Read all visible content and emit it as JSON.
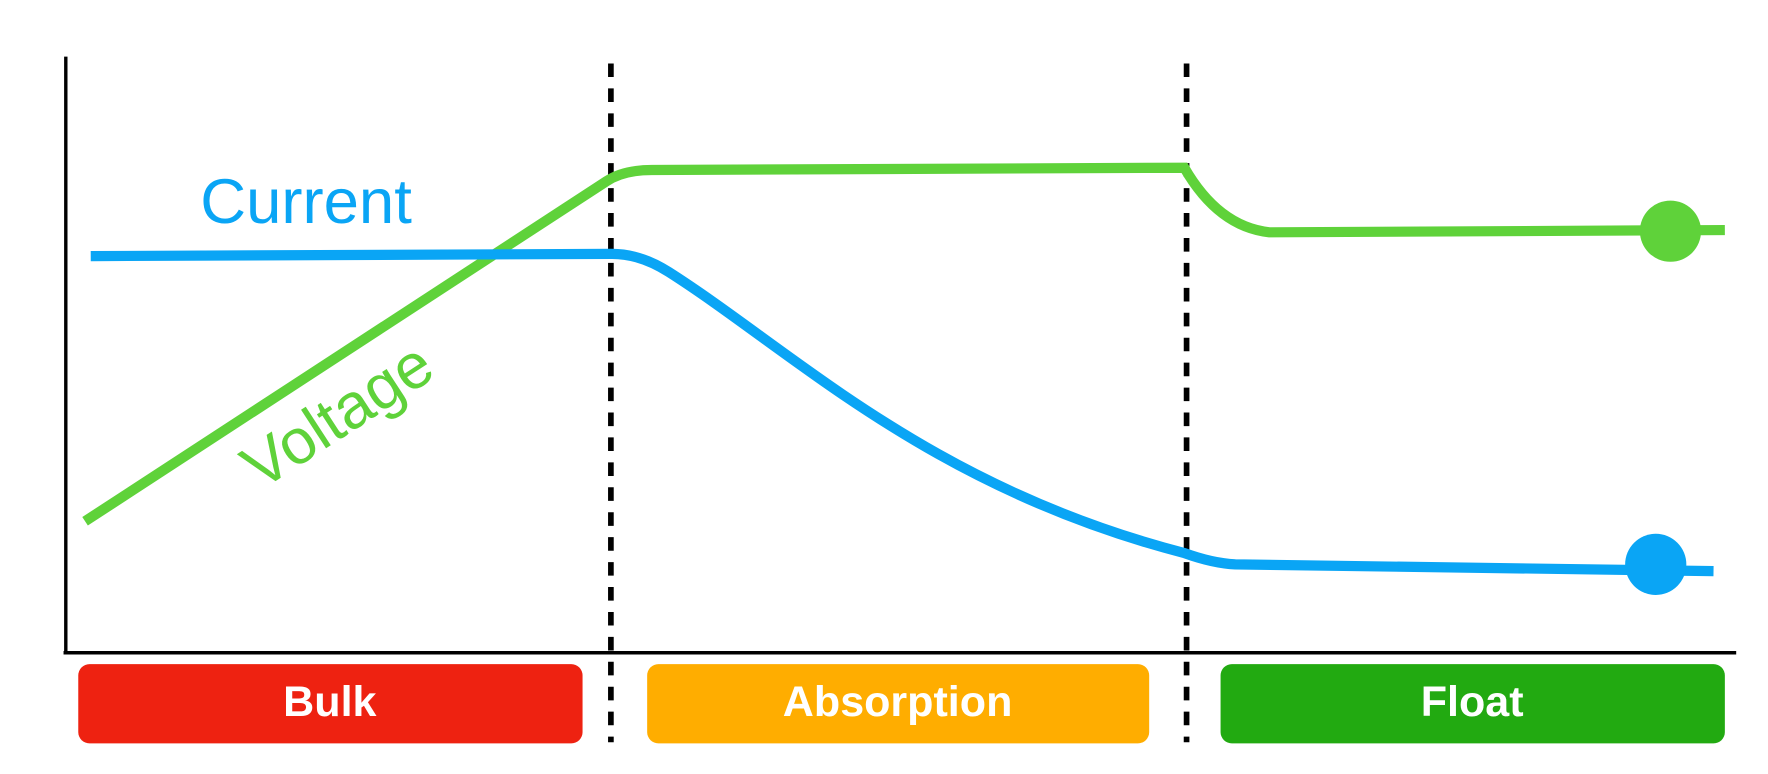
{
  "labels": {
    "current": "Current",
    "voltage": "Voltage"
  },
  "stages": [
    {
      "label": "Bulk"
    },
    {
      "label": "Absorption"
    },
    {
      "label": "Float"
    }
  ]
}
